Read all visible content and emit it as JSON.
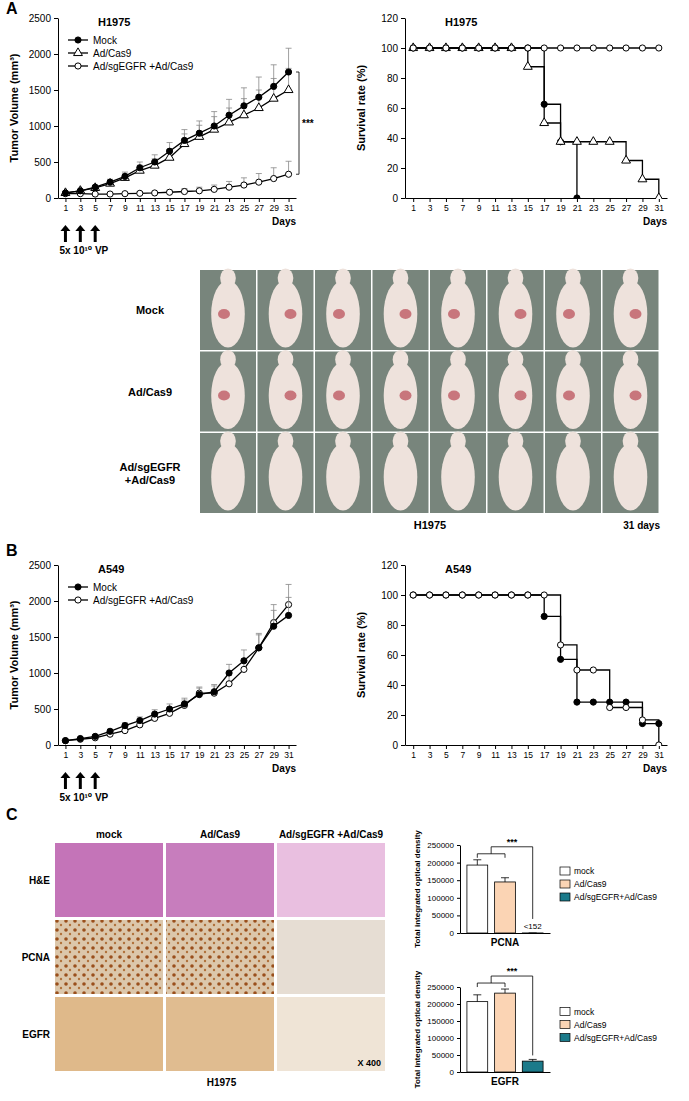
{
  "panel_labels": [
    "A",
    "B",
    "C"
  ],
  "chart_data": [
    {
      "type": "line",
      "title": "H1975",
      "x_label": "Days",
      "y_label": "Tumor Volume (mm³)",
      "x": [
        1,
        3,
        5,
        7,
        9,
        11,
        13,
        15,
        17,
        19,
        21,
        23,
        25,
        27,
        29,
        31
      ],
      "xlim": [
        0,
        32
      ],
      "xticks": [
        1,
        3,
        5,
        7,
        9,
        11,
        13,
        15,
        17,
        19,
        21,
        23,
        25,
        27,
        29,
        31
      ],
      "ylim": [
        0,
        2500
      ],
      "yticks": [
        0,
        500,
        1000,
        1500,
        2000,
        2500
      ],
      "legend": "upper left",
      "series": [
        {
          "name": "Mock",
          "color": "#000000",
          "marker": "circle",
          "values": [
            70,
            100,
            150,
            220,
            300,
            420,
            500,
            650,
            800,
            900,
            1000,
            1150,
            1280,
            1400,
            1550,
            1750
          ],
          "errors": [
            10,
            15,
            25,
            40,
            60,
            80,
            100,
            120,
            150,
            170,
            200,
            220,
            250,
            280,
            300,
            330
          ]
        },
        {
          "name": "Ad/Cas9",
          "color": "#000000",
          "marker": "triangle_open",
          "values": [
            70,
            100,
            140,
            200,
            280,
            380,
            450,
            560,
            750,
            850,
            950,
            1050,
            1150,
            1250,
            1380,
            1500
          ],
          "errors": [
            10,
            15,
            25,
            40,
            55,
            75,
            95,
            115,
            140,
            160,
            180,
            200,
            230,
            250,
            280,
            300
          ]
        },
        {
          "name": "Ad/sgEGFR +Ad/Cas9",
          "color": "#000000",
          "marker": "circle_open",
          "values": [
            60,
            60,
            55,
            55,
            60,
            65,
            70,
            80,
            90,
            100,
            120,
            150,
            180,
            220,
            270,
            330
          ],
          "errors": [
            10,
            10,
            10,
            10,
            15,
            20,
            20,
            30,
            40,
            50,
            60,
            80,
            100,
            120,
            150,
            180
          ]
        }
      ],
      "annotations": [
        "***"
      ],
      "injection_days": [
        1,
        3,
        5
      ],
      "injection_label": "5x 10¹⁰ VP"
    },
    {
      "type": "line",
      "title": "H1975",
      "x_label": "Days",
      "y_label": "Survival rate (%)",
      "line_style": "step",
      "x": [
        1,
        3,
        5,
        7,
        9,
        11,
        13,
        15,
        17,
        19,
        21,
        23,
        25,
        27,
        29,
        31
      ],
      "xlim": [
        0,
        32
      ],
      "xticks": [
        1,
        3,
        5,
        7,
        9,
        11,
        13,
        15,
        17,
        19,
        21,
        23,
        25,
        27,
        29,
        31
      ],
      "ylim": [
        0,
        120
      ],
      "yticks": [
        0,
        20,
        40,
        60,
        80,
        100,
        120
      ],
      "series": [
        {
          "color": "#000000",
          "marker": "circle_open",
          "values": [
            100,
            100,
            100,
            100,
            100,
            100,
            100,
            100,
            100,
            100,
            100,
            100,
            100,
            100,
            100,
            100
          ]
        },
        {
          "color": "#000000",
          "marker": "triangle_open",
          "values": [
            100,
            100,
            100,
            100,
            100,
            100,
            100,
            87.5,
            50,
            37.5,
            37.5,
            37.5,
            37.5,
            25,
            12.5,
            0
          ]
        },
        {
          "color": "#000000",
          "marker": "circle",
          "values": [
            100,
            100,
            100,
            100,
            100,
            100,
            100,
            100,
            62.5,
            37.5,
            0,
            null,
            null,
            null,
            null,
            null
          ]
        }
      ]
    },
    {
      "type": "line",
      "title": "A549",
      "x_label": "Days",
      "y_label": "Tumor Volume (mm³)",
      "x": [
        1,
        3,
        5,
        7,
        9,
        11,
        13,
        15,
        17,
        19,
        21,
        23,
        25,
        27,
        29,
        31
      ],
      "xlim": [
        0,
        32
      ],
      "xticks": [
        1,
        3,
        5,
        7,
        9,
        11,
        13,
        15,
        17,
        19,
        21,
        23,
        25,
        27,
        29,
        31
      ],
      "ylim": [
        0,
        2500
      ],
      "yticks": [
        0,
        500,
        1000,
        1500,
        2000,
        2500
      ],
      "legend": "upper left",
      "series": [
        {
          "name": "Mock",
          "color": "#000000",
          "marker": "circle",
          "values": [
            60,
            90,
            120,
            190,
            270,
            340,
            430,
            500,
            570,
            700,
            740,
            1000,
            1170,
            1350,
            1650,
            1800
          ],
          "errors": [
            10,
            15,
            20,
            30,
            40,
            50,
            60,
            70,
            80,
            90,
            100,
            120,
            150,
            180,
            220,
            250
          ]
        },
        {
          "name": "Ad/sgEGFR +Ad/Cas9",
          "color": "#000000",
          "marker": "circle_open",
          "values": [
            60,
            80,
            100,
            150,
            200,
            280,
            370,
            440,
            550,
            720,
            720,
            850,
            1050,
            1350,
            1700,
            1950
          ],
          "errors": [
            10,
            12,
            15,
            25,
            35,
            45,
            55,
            65,
            75,
            85,
            100,
            120,
            150,
            200,
            250,
            280
          ]
        }
      ],
      "injection_days": [
        1,
        3,
        5
      ],
      "injection_label": "5x 10¹⁰ VP"
    },
    {
      "type": "line",
      "title": "A549",
      "x_label": "Days",
      "y_label": "Survival rate (%)",
      "line_style": "step",
      "x": [
        1,
        3,
        5,
        7,
        9,
        11,
        13,
        15,
        17,
        19,
        21,
        23,
        25,
        27,
        29,
        31
      ],
      "xlim": [
        0,
        32
      ],
      "xticks": [
        1,
        3,
        5,
        7,
        9,
        11,
        13,
        15,
        17,
        19,
        21,
        23,
        25,
        27,
        29,
        31
      ],
      "ylim": [
        0,
        120
      ],
      "yticks": [
        0,
        20,
        40,
        60,
        80,
        100,
        120
      ],
      "series": [
        {
          "color": "#000000",
          "marker": "circle_open",
          "values": [
            100,
            100,
            100,
            100,
            100,
            100,
            100,
            100,
            100,
            66.7,
            50,
            50,
            25,
            25,
            16.7,
            0
          ]
        },
        {
          "color": "#000000",
          "marker": "circle",
          "values": [
            100,
            100,
            100,
            100,
            100,
            100,
            100,
            100,
            85.7,
            57.1,
            28.6,
            28.6,
            28.6,
            28.6,
            14.3,
            14.3
          ]
        }
      ]
    },
    {
      "type": "bar",
      "x_label": "PCNA",
      "y_label": "Total integrated optical density",
      "categories": [
        "mock",
        "Ad/Cas9",
        "Ad/sgEGFR+Ad/Cas9"
      ],
      "values": [
        193000,
        145000,
        152
      ],
      "errors": [
        15000,
        12000,
        0
      ],
      "value_labels": [
        null,
        null,
        "<152"
      ],
      "colors": [
        "#ffffff",
        "#fbd4b4",
        "#1b7a8a"
      ],
      "ylim": [
        0,
        250000
      ],
      "yticks": [
        0,
        50000,
        100000,
        150000,
        200000,
        250000
      ],
      "legend": "right",
      "tick_labels": "y",
      "annotations": [
        "***"
      ]
    },
    {
      "type": "bar",
      "x_label": "EGFR",
      "y_label": "Total integrated optical density",
      "categories": [
        "mock",
        "Ad/Cas9",
        "Ad/sgEGFR+Ad/Cas9"
      ],
      "values": [
        207000,
        232000,
        32000
      ],
      "errors": [
        20000,
        12000,
        5000
      ],
      "colors": [
        "#ffffff",
        "#fbd4b4",
        "#1b7a8a"
      ],
      "ylim": [
        0,
        250000
      ],
      "yticks": [
        0,
        50000,
        100000,
        150000,
        200000,
        250000
      ],
      "legend": "right",
      "tick_labels": "y",
      "annotations": [
        "***"
      ]
    }
  ],
  "photo_panel": {
    "row_labels": [
      "Mock",
      "Ad/Cas9",
      "Ad/sgEGFR +Ad/Cas9"
    ],
    "caption": "H1975",
    "note": "31 days"
  },
  "histology_panel": {
    "column_labels": [
      "mock",
      "Ad/Cas9",
      "Ad/sgEGFR +Ad/Cas9"
    ],
    "row_labels": [
      "H&E",
      "PCNA",
      "EGFR"
    ],
    "caption": "H1975",
    "magnification": "X 400"
  }
}
